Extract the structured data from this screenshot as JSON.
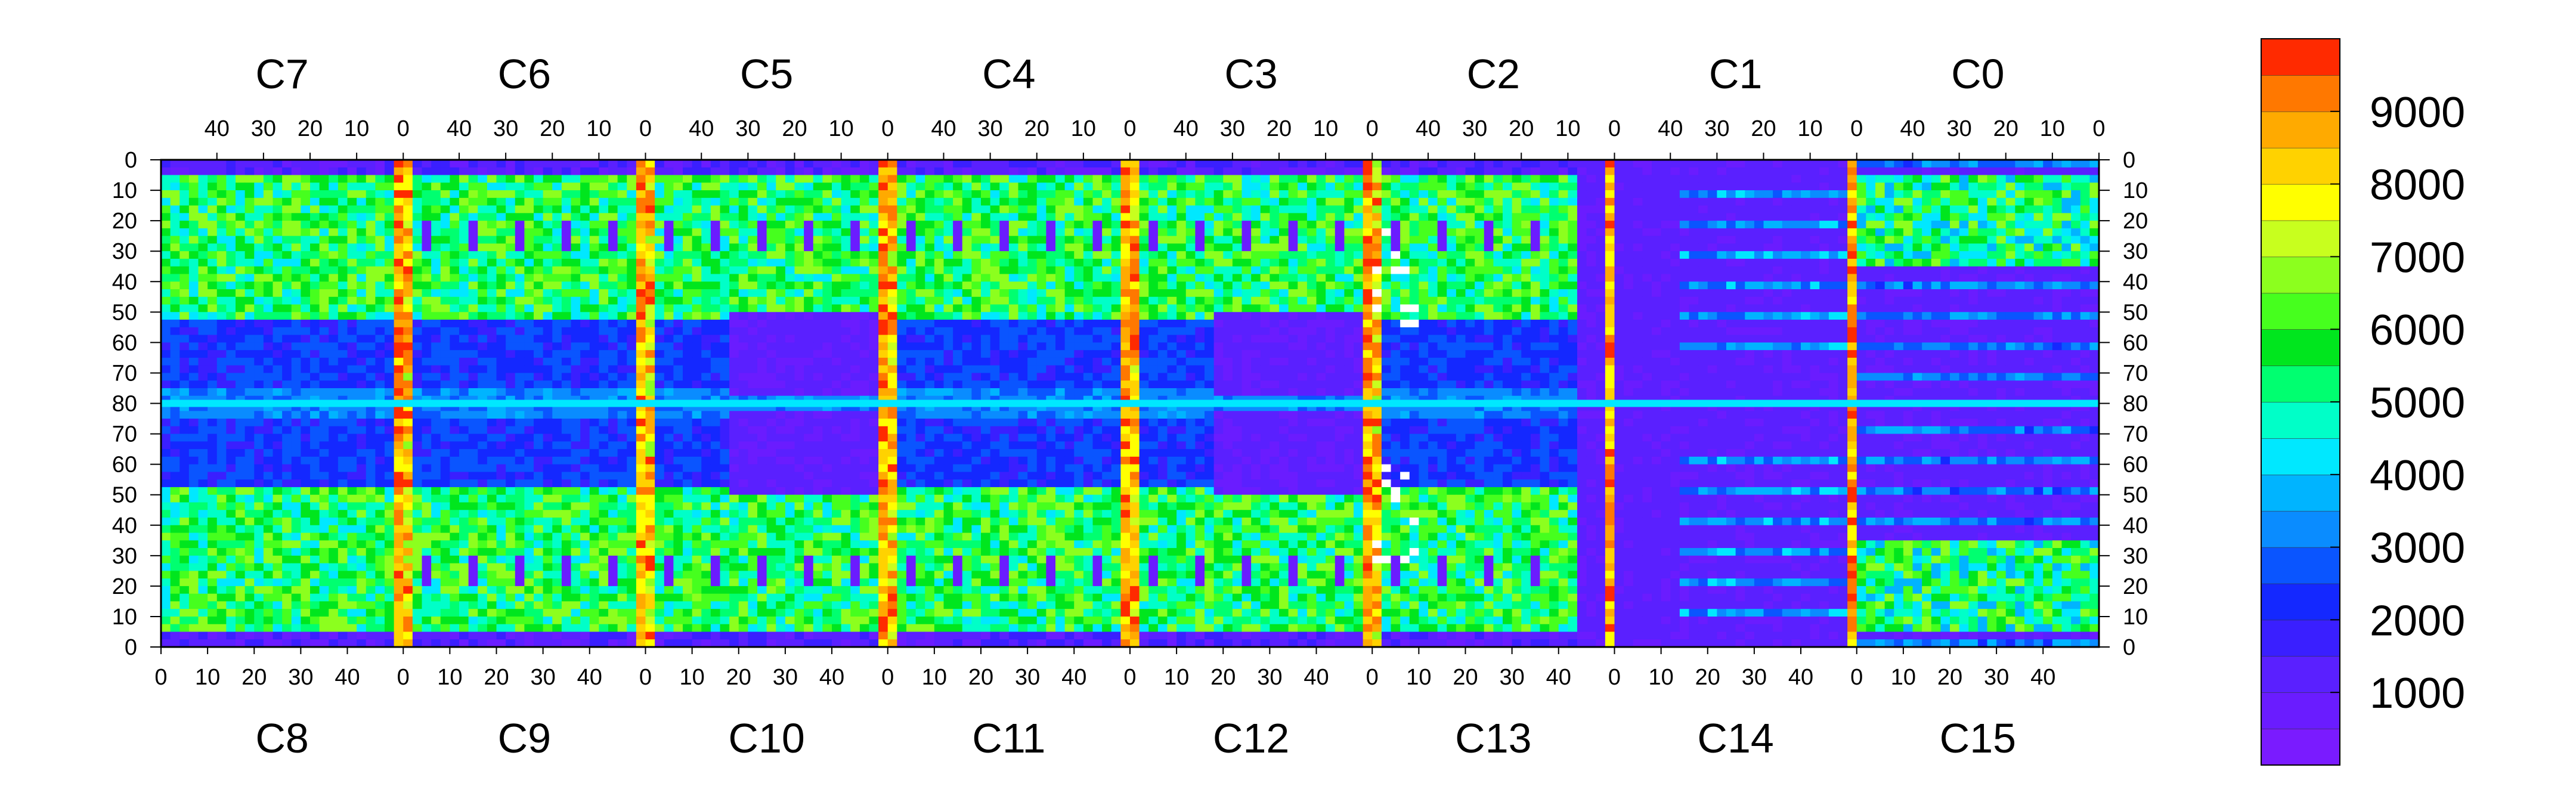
{
  "chart_data": {
    "type": "heatmap",
    "title": "",
    "xlabel": "",
    "ylabel": "",
    "chips_top": [
      "C7",
      "C6",
      "C5",
      "C4",
      "C3",
      "C2",
      "C1",
      "C0"
    ],
    "chips_bottom": [
      "C8",
      "C9",
      "C10",
      "C11",
      "C12",
      "C13",
      "C14",
      "C15"
    ],
    "x_ticks_top": [
      "40",
      "30",
      "20",
      "10",
      "0"
    ],
    "x_ticks_bottom": [
      "0",
      "10",
      "20",
      "30",
      "40"
    ],
    "y_ticks": [
      "0",
      "10",
      "20",
      "30",
      "40",
      "50",
      "60",
      "70",
      "80",
      "70",
      "60",
      "50",
      "40",
      "30",
      "20",
      "10",
      "0"
    ],
    "colorbar": {
      "ticks": [
        "9000",
        "8000",
        "7000",
        "6000",
        "5000",
        "4000",
        "3000",
        "2000",
        "1000"
      ],
      "min": 0,
      "max": 10000,
      "levels": 20,
      "colors": [
        "#7a1bff",
        "#6a1cff",
        "#5a20ff",
        "#3a1fff",
        "#1428ff",
        "#0a55ff",
        "#0a8cff",
        "#00b4ff",
        "#00e8ff",
        "#00ffc8",
        "#00ff70",
        "#00e61e",
        "#46ff1e",
        "#8cff1e",
        "#c8ff1e",
        "#ffff00",
        "#ffd200",
        "#ffaa00",
        "#ff7800",
        "#ff2a00"
      ]
    },
    "empty_color": "#ffffff",
    "sensor_grid": {
      "chips_per_row": 8,
      "rows": 2,
      "columns_per_chip": 52,
      "rows_per_half": 80
    },
    "legend": "right"
  }
}
